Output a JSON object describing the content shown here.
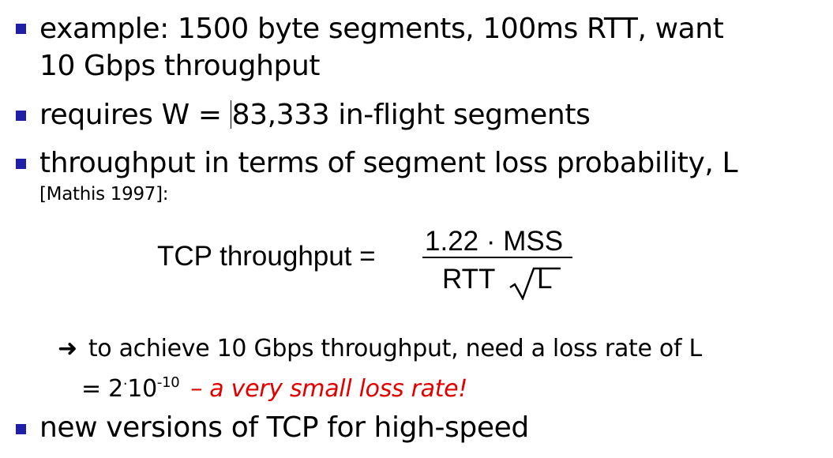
{
  "slide": {
    "bullet1_line1": "example: 1500 byte segments, 100ms RTT, want",
    "bullet1_line2": "10 Gbps throughput",
    "bullet2_pre": "requires W = ",
    "bullet2_post": "83,333 in-flight segments",
    "bullet3_line1": "throughput in terms of segment loss probability, L",
    "bullet3_citation": "[Mathis 1997]:",
    "formula": {
      "label": "TCP throughput =",
      "numerator": "1.22 · MSS",
      "denominator_rtt": "RTT",
      "denominator_sqrt": "L"
    },
    "sub_arrow": "➜",
    "sub_line1": "to achieve 10 Gbps throughput, need a loss rate of L",
    "sub_line2_pre": "= 2",
    "sub_line2_dot": "·",
    "sub_line2_base": "10",
    "sub_line2_exp": "-10",
    "sub_line2_note": "– a very small loss rate!",
    "bullet4": "new versions of TCP for high-speed"
  }
}
